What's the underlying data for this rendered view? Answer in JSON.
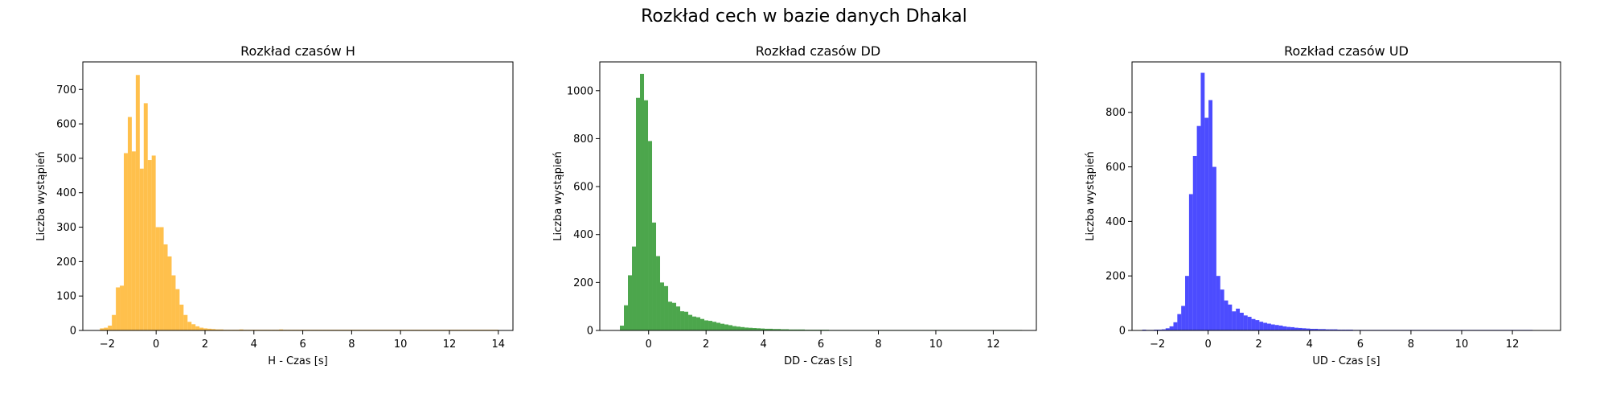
{
  "figure": {
    "suptitle": "Rozkład cech w bazie danych Dhakal"
  },
  "chart_data": [
    {
      "type": "bar",
      "subtype": "histogram",
      "title": "Rozkład czasów H",
      "xlabel": "H - Czas [s]",
      "ylabel": "Liczba wystąpień",
      "color": "#FFA500",
      "opacity": 0.7,
      "xlim": [
        -3.0,
        14.6
      ],
      "ylim": [
        0,
        780
      ],
      "xticks": [
        -2,
        0,
        2,
        4,
        6,
        8,
        10,
        12,
        14
      ],
      "yticks": [
        0,
        100,
        200,
        300,
        400,
        500,
        600,
        700
      ],
      "bin_start": -2.3,
      "bin_width": 0.163,
      "values": [
        6,
        8,
        14,
        45,
        125,
        130,
        515,
        620,
        520,
        742,
        470,
        660,
        495,
        508,
        300,
        300,
        250,
        215,
        160,
        120,
        75,
        45,
        25,
        18,
        12,
        8,
        6,
        5,
        4,
        3,
        3,
        2,
        2,
        2,
        2,
        3,
        2,
        2,
        2,
        2,
        2,
        2,
        2,
        2,
        2,
        3,
        2,
        2,
        2,
        2,
        2,
        2,
        2,
        2,
        2,
        2,
        2,
        2,
        2,
        2,
        2,
        2,
        2,
        2,
        2,
        2,
        2,
        2,
        2,
        2,
        2,
        2,
        2,
        2,
        2,
        2,
        2,
        2,
        2,
        2,
        2,
        2,
        2,
        2,
        2,
        2,
        2,
        2,
        2,
        2,
        2,
        2,
        2,
        2,
        2,
        2,
        2,
        2,
        2,
        2
      ]
    },
    {
      "type": "bar",
      "subtype": "histogram",
      "title": "Rozkład czasów DD",
      "xlabel": "DD - Czas [s]",
      "ylabel": "Liczba wystąpień",
      "color": "#008000",
      "opacity": 0.7,
      "xlim": [
        -1.7,
        13.5
      ],
      "ylim": [
        0,
        1120
      ],
      "xticks": [
        0,
        2,
        4,
        6,
        8,
        10,
        12
      ],
      "yticks": [
        0,
        200,
        400,
        600,
        800,
        1000
      ],
      "bin_start": -1.0,
      "bin_width": 0.14,
      "values": [
        20,
        105,
        230,
        350,
        970,
        1070,
        960,
        790,
        450,
        310,
        200,
        185,
        120,
        115,
        100,
        80,
        78,
        65,
        58,
        55,
        48,
        42,
        40,
        36,
        32,
        28,
        25,
        22,
        18,
        16,
        14,
        12,
        11,
        10,
        9,
        8,
        7,
        7,
        6,
        6,
        5,
        5,
        4,
        4,
        4,
        4,
        3,
        3,
        3,
        3,
        3,
        3,
        2,
        2,
        2,
        2,
        2,
        2,
        2,
        2,
        2,
        2,
        2,
        2,
        2,
        2,
        2,
        2,
        2,
        2,
        2,
        2,
        2,
        2,
        2,
        2,
        2,
        2,
        2,
        2,
        2,
        2,
        2,
        2,
        2,
        2,
        2,
        2,
        2,
        2,
        2,
        2,
        2,
        2,
        2,
        2,
        2,
        2,
        2,
        2
      ]
    },
    {
      "type": "bar",
      "subtype": "histogram",
      "title": "Rozkład czasów UD",
      "xlabel": "UD - Czas [s]",
      "ylabel": "Liczba wystąpień",
      "color": "#0000FF",
      "opacity": 0.7,
      "xlim": [
        -3.0,
        13.9
      ],
      "ylim": [
        0,
        985
      ],
      "xticks": [
        -2,
        0,
        2,
        4,
        6,
        8,
        10,
        12
      ],
      "yticks": [
        0,
        200,
        400,
        600,
        800
      ],
      "bin_start": -2.6,
      "bin_width": 0.154,
      "values": [
        3,
        2,
        2,
        3,
        3,
        4,
        8,
        15,
        30,
        60,
        90,
        200,
        500,
        640,
        750,
        945,
        780,
        845,
        600,
        200,
        150,
        110,
        95,
        70,
        80,
        65,
        55,
        50,
        42,
        38,
        32,
        28,
        25,
        22,
        20,
        18,
        15,
        13,
        12,
        10,
        9,
        8,
        7,
        6,
        6,
        5,
        5,
        4,
        4,
        4,
        3,
        3,
        3,
        3,
        2,
        2,
        2,
        2,
        2,
        2,
        2,
        2,
        2,
        2,
        2,
        2,
        2,
        2,
        2,
        2,
        2,
        2,
        2,
        2,
        2,
        2,
        2,
        2,
        2,
        2,
        2,
        2,
        2,
        2,
        2,
        2,
        2,
        2,
        2,
        2,
        2,
        2,
        2,
        2,
        2,
        2,
        2,
        2,
        2,
        2
      ]
    }
  ]
}
